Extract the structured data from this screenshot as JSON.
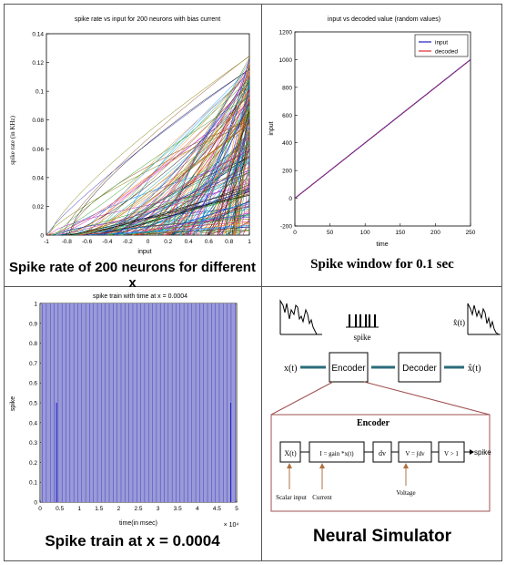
{
  "captions": {
    "c1": "Spike rate of 200 neurons for different x",
    "c2": "Spike window for 0.1 sec",
    "c3": "Spike train at x = 0.0004",
    "c4": "Neural Simulator"
  },
  "chart_data": [
    {
      "type": "line",
      "title": "spike rate vs input for 200 neurons with bias current",
      "xlabel": "input",
      "ylabel": "spike rate (in KHz)",
      "xlim": [
        -1,
        1
      ],
      "ylim": [
        0,
        0.14
      ],
      "xticks": [
        "-1",
        "-0.8",
        "-0.6",
        "-0.4",
        "-0.2",
        "0",
        "0.2",
        "0.4",
        "0.6",
        "0.8",
        "1"
      ],
      "yticks": [
        "0",
        "0.02",
        "0.04",
        "0.06",
        "0.08",
        "0.1",
        "0.12",
        "0.14"
      ],
      "series_count": 200,
      "max_rate_at_x1": 0.125
    },
    {
      "type": "line",
      "title": "input vs decoded value (random values)",
      "xlabel": "time",
      "ylabel": "input",
      "xlim": [
        0,
        250
      ],
      "ylim": [
        -200,
        1200
      ],
      "xticks": [
        "0",
        "50",
        "100",
        "150",
        "200",
        "250"
      ],
      "yticks": [
        "-200",
        "0",
        "200",
        "400",
        "600",
        "800",
        "1000",
        "1200"
      ],
      "legend_position": "top-right",
      "series": [
        {
          "name": "input",
          "color": "#1f1fbf",
          "x": [
            0,
            250
          ],
          "y": [
            0,
            1000
          ]
        },
        {
          "name": "decoded",
          "color": "#e0282e",
          "x": [
            0,
            250
          ],
          "y": [
            0,
            1000
          ]
        }
      ]
    },
    {
      "type": "bar",
      "title": "spike train with time at x = 0.0004",
      "xlabel": "time(in msec)",
      "ylabel": "spike",
      "xlim": [
        0,
        5
      ],
      "ylim": [
        0,
        1
      ],
      "x_multiplier": "× 10⁴",
      "xticks": [
        "0",
        "0.5",
        "1",
        "1.5",
        "2",
        "2.5",
        "3",
        "3.5",
        "4",
        "4.5",
        "5"
      ],
      "yticks": [
        "0",
        "0.1",
        "0.2",
        "0.3",
        "0.4",
        "0.5",
        "0.6",
        "0.7",
        "0.8",
        "0.9",
        "1"
      ],
      "spike_value": 1,
      "half_spikes": [
        {
          "x": 0.42,
          "y": 0.5
        },
        {
          "x": 4.85,
          "y": 0.5
        }
      ]
    }
  ],
  "diagram": {
    "spike_label": "spike",
    "x_in": "x(t)",
    "x_hat_out": "x̂(t)",
    "x_hat_signal": "x̂(t)",
    "encoder": "Encoder",
    "decoder": "Decoder",
    "encoder_title": "Encoder",
    "blocks": [
      "X(t)",
      "I = gain *x(t)",
      "dv",
      "V = ∫dv",
      "V > 1"
    ],
    "spike_out": "spike",
    "annotations": [
      "Scalar input",
      "Current",
      "Voltage"
    ]
  }
}
